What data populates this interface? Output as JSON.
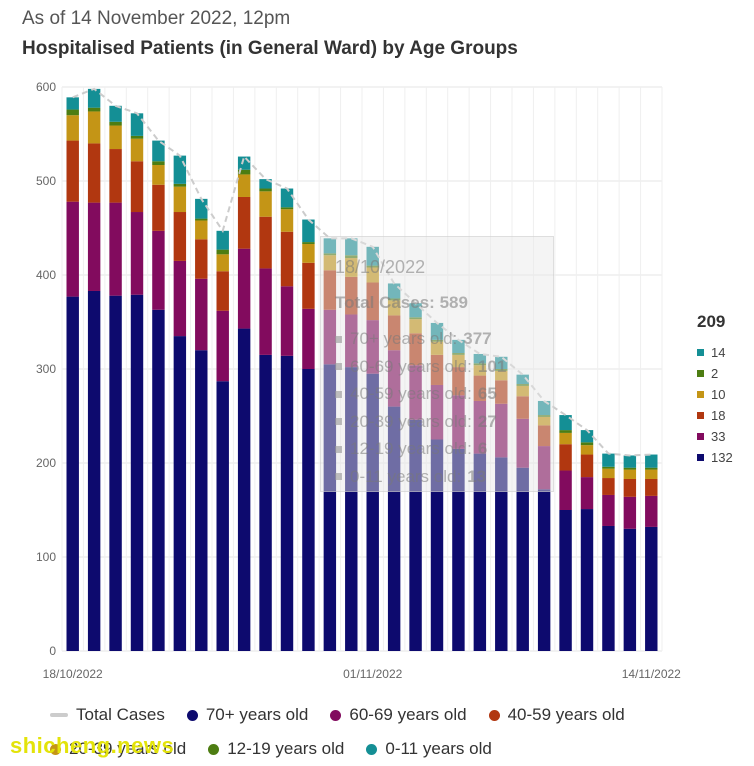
{
  "header": {
    "subtitle": "As of 14 November 2022, 12pm",
    "title": "Hospitalised Patients (in General Ward) by Age Groups"
  },
  "chart_data": {
    "type": "bar",
    "stacked": true,
    "categories": [
      "18/10/2022",
      "19/10/2022",
      "20/10/2022",
      "21/10/2022",
      "22/10/2022",
      "23/10/2022",
      "24/10/2022",
      "25/10/2022",
      "26/10/2022",
      "27/10/2022",
      "28/10/2022",
      "29/10/2022",
      "30/10/2022",
      "31/10/2022",
      "01/11/2022",
      "02/11/2022",
      "03/11/2022",
      "04/11/2022",
      "05/11/2022",
      "06/11/2022",
      "07/11/2022",
      "08/11/2022",
      "09/11/2022",
      "10/11/2022",
      "11/11/2022",
      "12/11/2022",
      "13/11/2022",
      "14/11/2022"
    ],
    "x_tick_labels": [
      "18/10/2022",
      "01/11/2022",
      "14/11/2022"
    ],
    "y_ticks": [
      0,
      100,
      200,
      300,
      400,
      500,
      600
    ],
    "ylim": [
      0,
      600
    ],
    "grid": true,
    "series": [
      {
        "name": "70+ years old",
        "color": "#0d0a6e",
        "values": [
          377,
          383,
          378,
          379,
          363,
          335,
          320,
          287,
          343,
          315,
          314,
          300,
          305,
          302,
          295,
          260,
          246,
          225,
          215,
          210,
          206,
          195,
          172,
          150,
          151,
          133,
          130,
          132
        ]
      },
      {
        "name": "60-69 years old",
        "color": "#820b5e",
        "values": [
          101,
          94,
          99,
          88,
          84,
          80,
          76,
          75,
          85,
          92,
          74,
          64,
          58,
          56,
          57,
          60,
          58,
          58,
          57,
          56,
          57,
          52,
          46,
          42,
          34,
          33,
          34,
          33
        ]
      },
      {
        "name": "40-59 years old",
        "color": "#b13710",
        "values": [
          65,
          63,
          57,
          54,
          49,
          52,
          42,
          42,
          55,
          55,
          58,
          49,
          42,
          40,
          40,
          37,
          34,
          32,
          30,
          27,
          25,
          24,
          22,
          28,
          24,
          18,
          19,
          18
        ]
      },
      {
        "name": "20-39 years old",
        "color": "#c49516",
        "values": [
          27,
          34,
          25,
          24,
          21,
          27,
          20,
          18,
          24,
          27,
          24,
          20,
          16,
          20,
          16,
          16,
          15,
          14,
          13,
          11,
          10,
          11,
          9,
          12,
          10,
          10,
          10,
          10
        ]
      },
      {
        "name": "12-19 years old",
        "color": "#4d7d12",
        "values": [
          6,
          4,
          4,
          3,
          4,
          3,
          2,
          5,
          5,
          3,
          2,
          2,
          2,
          3,
          2,
          2,
          2,
          2,
          2,
          2,
          2,
          2,
          2,
          3,
          3,
          2,
          2,
          2
        ]
      },
      {
        "name": "0-11 years old",
        "color": "#148f95",
        "values": [
          13,
          20,
          17,
          24,
          22,
          30,
          21,
          20,
          14,
          10,
          20,
          24,
          16,
          18,
          20,
          16,
          15,
          18,
          14,
          10,
          13,
          10,
          15,
          16,
          13,
          14,
          13,
          14
        ]
      }
    ],
    "total_series": {
      "name": "Total Cases",
      "color": "#cccccc",
      "style": "dashed",
      "values": [
        589,
        598,
        580,
        572,
        543,
        527,
        481,
        447,
        526,
        502,
        492,
        459,
        439,
        439,
        430,
        391,
        370,
        349,
        331,
        316,
        313,
        294,
        266,
        251,
        235,
        210,
        208,
        209
      ]
    },
    "side_legend": {
      "total": "209",
      "values": [
        "14",
        "2",
        "10",
        "18",
        "33",
        "132"
      ]
    },
    "tooltip": {
      "date": "18/10/2022",
      "total_label": "Total Cases:",
      "total_value": "589",
      "rows": [
        {
          "label": "70+ years old:",
          "value": "377"
        },
        {
          "label": "60-69 years old:",
          "value": "101"
        },
        {
          "label": "40-59 years old:",
          "value": "65"
        },
        {
          "label": "20-39 years old:",
          "value": "27"
        },
        {
          "label": "12-19 years old:",
          "value": "6"
        },
        {
          "label": "0-11 years old:",
          "value": "13"
        }
      ]
    }
  },
  "legend": {
    "total_label": "Total Cases",
    "items": [
      "70+ years old",
      "60-69 years old",
      "40-59 years old",
      "20-39 years old",
      "12-19 years old",
      "0-11 years old"
    ]
  },
  "watermark": "shicheng.news"
}
